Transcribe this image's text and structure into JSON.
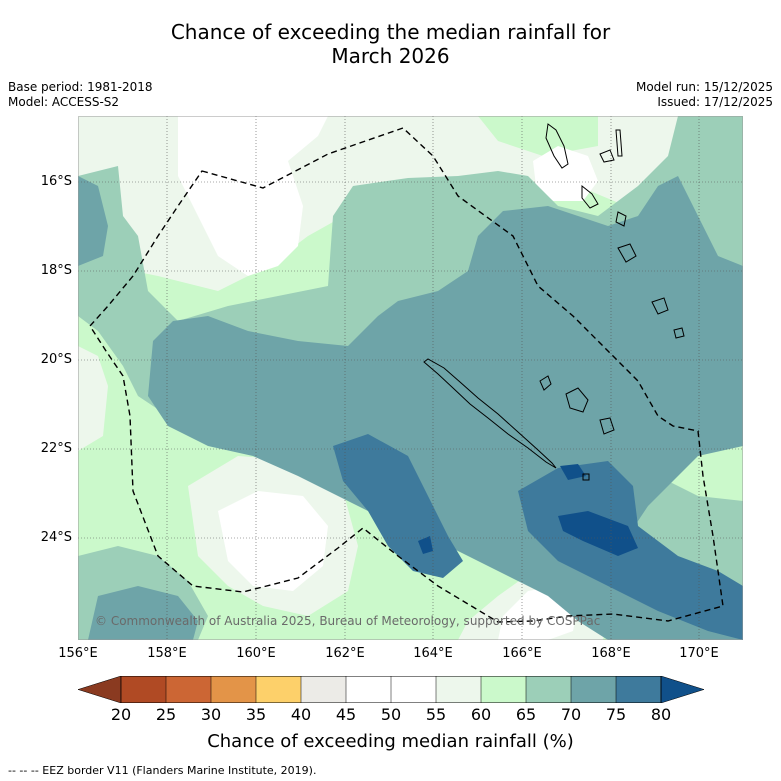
{
  "title_line1": "Chance of exceeding the median rainfall for",
  "title_line2": "March 2026",
  "base_period": "Base period: 1981-2018",
  "model": "Model: ACCESS-S2",
  "model_run": "Model run: 15/12/2025",
  "issued": "Issued: 17/12/2025",
  "copyright": "© Commonwealth of Australia 2025, Bureau of Meteorology, supported by COSPPac",
  "lon_labels": [
    "156°E",
    "158°E",
    "160°E",
    "162°E",
    "164°E",
    "166°E",
    "168°E",
    "170°E"
  ],
  "lat_labels": [
    "16°S",
    "18°S",
    "20°S",
    "22°S",
    "24°S"
  ],
  "colorbar": {
    "ticks": [
      "20",
      "25",
      "30",
      "35",
      "40",
      "45",
      "50",
      "55",
      "60",
      "65",
      "70",
      "75",
      "80"
    ],
    "colors": {
      "below20": "#8a3a20",
      "c20_25": "#b04a24",
      "c25_30": "#cc6634",
      "c30_35": "#e39448",
      "c35_40": "#fdd06a",
      "c40_45": "#ecebe7",
      "c45_50": "#ffffff",
      "c50_55": "#ffffff",
      "c55_60": "#edf7ec",
      "c60_65": "#cbf9cb",
      "c65_70": "#9ccfb8",
      "c70_75": "#6ea4a8",
      "c75_80": "#3e7a9c",
      "above80": "#10508a"
    },
    "label": "Chance of exceeding median rainfall (%)"
  },
  "footer": "--  --  -- EEZ border V11 (Flanders Marine Institute, 2019)."
}
